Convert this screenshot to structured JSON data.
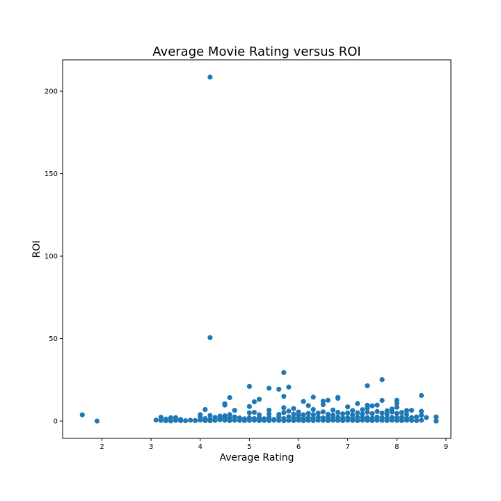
{
  "chart_data": {
    "type": "scatter",
    "title": "Average Movie Rating versus ROI",
    "xlabel": "Average Rating",
    "ylabel": "ROI",
    "xlim": [
      1.2,
      9.1
    ],
    "ylim": [
      -10.5,
      219
    ],
    "xticks": [
      2,
      3,
      4,
      5,
      6,
      7,
      8,
      9
    ],
    "yticks": [
      0,
      50,
      100,
      150,
      200
    ],
    "grid": false,
    "legend": "none",
    "marker_color": "#1f77b4",
    "points": [
      [
        1.6,
        3.8
      ],
      [
        1.9,
        0.0
      ],
      [
        3.1,
        0.6
      ],
      [
        3.2,
        0.4
      ],
      [
        3.2,
        2.3
      ],
      [
        3.3,
        0.2
      ],
      [
        3.3,
        1.2
      ],
      [
        3.4,
        0.1
      ],
      [
        3.4,
        2.0
      ],
      [
        3.5,
        0.4
      ],
      [
        3.5,
        2.1
      ],
      [
        3.6,
        0.3
      ],
      [
        3.6,
        1.0
      ],
      [
        3.7,
        0.2
      ],
      [
        3.8,
        0.5
      ],
      [
        3.9,
        0.3
      ],
      [
        4.0,
        0.6
      ],
      [
        4.0,
        2.5
      ],
      [
        4.0,
        3.9
      ],
      [
        4.1,
        0.3
      ],
      [
        4.1,
        1.5
      ],
      [
        4.1,
        7.0
      ],
      [
        4.2,
        208.5
      ],
      [
        4.2,
        50.6
      ],
      [
        4.2,
        3.4
      ],
      [
        4.2,
        1.0
      ],
      [
        4.2,
        0.2
      ],
      [
        4.3,
        0.4
      ],
      [
        4.3,
        2.2
      ],
      [
        4.4,
        0.8
      ],
      [
        4.4,
        3.0
      ],
      [
        4.4,
        1.5
      ],
      [
        4.5,
        0.5
      ],
      [
        4.5,
        3.2
      ],
      [
        4.5,
        9.7
      ],
      [
        4.5,
        10.5
      ],
      [
        4.5,
        2.0
      ],
      [
        4.6,
        0.3
      ],
      [
        4.6,
        1.8
      ],
      [
        4.6,
        3.9
      ],
      [
        4.6,
        14.2
      ],
      [
        4.7,
        0.5
      ],
      [
        4.7,
        2.5
      ],
      [
        4.7,
        6.5
      ],
      [
        4.8,
        0.4
      ],
      [
        4.8,
        1.9
      ],
      [
        4.9,
        0.3
      ],
      [
        4.9,
        1.4
      ],
      [
        5.0,
        0.4
      ],
      [
        5.0,
        2.0
      ],
      [
        5.0,
        5.0
      ],
      [
        5.0,
        8.8
      ],
      [
        5.0,
        21.0
      ],
      [
        5.1,
        0.5
      ],
      [
        5.1,
        1.5
      ],
      [
        5.1,
        5.3
      ],
      [
        5.1,
        11.7
      ],
      [
        5.2,
        0.3
      ],
      [
        5.2,
        2.0
      ],
      [
        5.2,
        3.8
      ],
      [
        5.2,
        13.2
      ],
      [
        5.3,
        0.4
      ],
      [
        5.3,
        1.4
      ],
      [
        5.4,
        0.3
      ],
      [
        5.4,
        2.1
      ],
      [
        5.4,
        4.3
      ],
      [
        5.4,
        6.6
      ],
      [
        5.4,
        19.9
      ],
      [
        5.5,
        0.5
      ],
      [
        5.5,
        1.0
      ],
      [
        5.6,
        0.4
      ],
      [
        5.6,
        2.3
      ],
      [
        5.6,
        4.0
      ],
      [
        5.6,
        19.3
      ],
      [
        5.7,
        0.2
      ],
      [
        5.7,
        1.5
      ],
      [
        5.7,
        5.1
      ],
      [
        5.7,
        8.1
      ],
      [
        5.7,
        15.0
      ],
      [
        5.7,
        29.4
      ],
      [
        5.8,
        0.4
      ],
      [
        5.8,
        2.6
      ],
      [
        5.8,
        6.0
      ],
      [
        5.8,
        20.6
      ],
      [
        5.9,
        0.3
      ],
      [
        5.9,
        1.8
      ],
      [
        5.9,
        4.2
      ],
      [
        5.9,
        7.6
      ],
      [
        6.0,
        0.5
      ],
      [
        6.0,
        2.0
      ],
      [
        6.0,
        3.5
      ],
      [
        6.0,
        5.5
      ],
      [
        6.1,
        0.2
      ],
      [
        6.1,
        1.5
      ],
      [
        6.1,
        3.8
      ],
      [
        6.1,
        11.9
      ],
      [
        6.2,
        0.4
      ],
      [
        6.2,
        2.1
      ],
      [
        6.2,
        4.6
      ],
      [
        6.2,
        9.4
      ],
      [
        6.3,
        0.3
      ],
      [
        6.3,
        1.7
      ],
      [
        6.3,
        3.9
      ],
      [
        6.3,
        7.0
      ],
      [
        6.3,
        14.5
      ],
      [
        6.4,
        0.5
      ],
      [
        6.4,
        2.3
      ],
      [
        6.4,
        4.8
      ],
      [
        6.5,
        0.4
      ],
      [
        6.5,
        1.9
      ],
      [
        6.5,
        5.6
      ],
      [
        6.5,
        10.0
      ],
      [
        6.5,
        12.1
      ],
      [
        6.6,
        0.3
      ],
      [
        6.6,
        2.2
      ],
      [
        6.6,
        4.1
      ],
      [
        6.6,
        12.6
      ],
      [
        6.7,
        0.5
      ],
      [
        6.7,
        1.5
      ],
      [
        6.7,
        3.6
      ],
      [
        6.7,
        6.7
      ],
      [
        6.8,
        0.4
      ],
      [
        6.8,
        2.4
      ],
      [
        6.8,
        5.3
      ],
      [
        6.8,
        13.8
      ],
      [
        6.8,
        14.3
      ],
      [
        6.9,
        0.3
      ],
      [
        6.9,
        1.8
      ],
      [
        6.9,
        4.4
      ],
      [
        7.0,
        0.5
      ],
      [
        7.0,
        2.0
      ],
      [
        7.0,
        4.9
      ],
      [
        7.0,
        8.6
      ],
      [
        7.1,
        0.4
      ],
      [
        7.1,
        1.6
      ],
      [
        7.1,
        3.7
      ],
      [
        7.1,
        6.4
      ],
      [
        7.2,
        0.3
      ],
      [
        7.2,
        2.3
      ],
      [
        7.2,
        5.0
      ],
      [
        7.2,
        10.6
      ],
      [
        7.3,
        0.5
      ],
      [
        7.3,
        1.9
      ],
      [
        7.3,
        4.2
      ],
      [
        7.3,
        6.9
      ],
      [
        7.4,
        0.4
      ],
      [
        7.4,
        2.1
      ],
      [
        7.4,
        5.4
      ],
      [
        7.4,
        8.0
      ],
      [
        7.4,
        9.6
      ],
      [
        7.4,
        21.4
      ],
      [
        7.5,
        0.3
      ],
      [
        7.5,
        1.7
      ],
      [
        7.5,
        4.5
      ],
      [
        7.5,
        9.2
      ],
      [
        7.6,
        0.5
      ],
      [
        7.6,
        2.4
      ],
      [
        7.6,
        5.8
      ],
      [
        7.6,
        9.7
      ],
      [
        7.7,
        0.4
      ],
      [
        7.7,
        2.0
      ],
      [
        7.7,
        4.8
      ],
      [
        7.7,
        12.5
      ],
      [
        7.7,
        25.1
      ],
      [
        7.8,
        0.3
      ],
      [
        7.8,
        1.8
      ],
      [
        7.8,
        4.1
      ],
      [
        7.8,
        6.2
      ],
      [
        7.9,
        0.5
      ],
      [
        7.9,
        2.2
      ],
      [
        7.9,
        5.5
      ],
      [
        7.9,
        7.3
      ],
      [
        8.0,
        0.4
      ],
      [
        8.0,
        1.9
      ],
      [
        8.0,
        4.6
      ],
      [
        8.0,
        8.4
      ],
      [
        8.0,
        10.8
      ],
      [
        8.0,
        12.6
      ],
      [
        8.1,
        0.3
      ],
      [
        8.1,
        2.3
      ],
      [
        8.1,
        5.2
      ],
      [
        8.2,
        0.5
      ],
      [
        8.2,
        1.6
      ],
      [
        8.2,
        4.0
      ],
      [
        8.2,
        6.4
      ],
      [
        8.3,
        0.4
      ],
      [
        8.3,
        2.1
      ],
      [
        8.3,
        6.5
      ],
      [
        8.4,
        0.3
      ],
      [
        8.4,
        2.5
      ],
      [
        8.5,
        0.5
      ],
      [
        8.5,
        3.5
      ],
      [
        8.5,
        5.9
      ],
      [
        8.5,
        15.5
      ],
      [
        8.6,
        2.1
      ],
      [
        8.8,
        0.0
      ],
      [
        8.8,
        2.5
      ]
    ]
  }
}
